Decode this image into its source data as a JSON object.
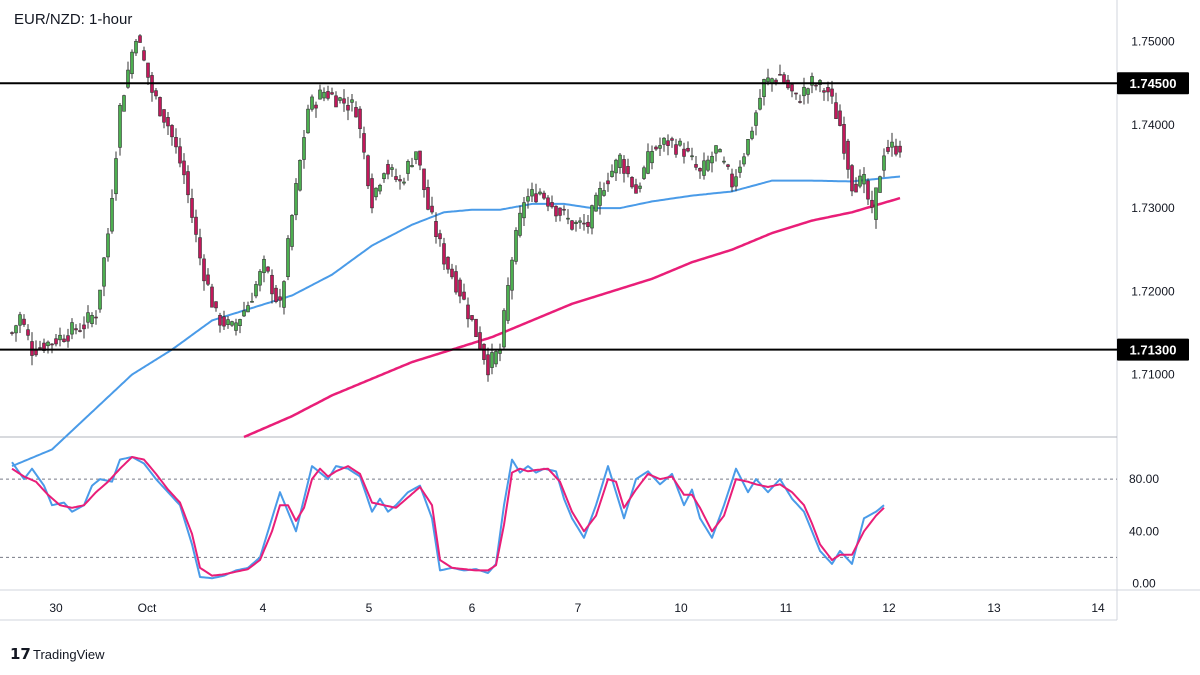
{
  "chart_data": [
    {
      "type": "candlestick",
      "title": "EUR/NZD: 1-hour",
      "ylim": [
        1.7025,
        1.755
      ],
      "y_ticks": [
        {
          "value": 1.75,
          "label": "1.75000"
        },
        {
          "value": 1.74,
          "label": "1.74000"
        },
        {
          "value": 1.73,
          "label": "1.73000"
        },
        {
          "value": 1.72,
          "label": "1.72000"
        },
        {
          "value": 1.71,
          "label": "1.71000"
        }
      ],
      "x_ticks": [
        "30",
        "Oct",
        "4",
        "5",
        "6",
        "7",
        "10",
        "11",
        "12",
        "13",
        "14"
      ],
      "colors": {
        "up": "#4caf50",
        "down": "#c2185b",
        "ma_fast": "#4a9be8",
        "ma_slow": "#e91e78",
        "level": "#000000"
      },
      "horizontal_levels": [
        {
          "value": 1.745,
          "label": "1.74500"
        },
        {
          "value": 1.713,
          "label": "1.71300"
        }
      ],
      "anchors": [
        [
          0,
          1.715
        ],
        [
          2,
          1.717
        ],
        [
          5,
          1.713
        ],
        [
          10,
          1.714
        ],
        [
          18,
          1.716
        ],
        [
          21,
          1.7175
        ],
        [
          24,
          1.727
        ],
        [
          27,
          1.742
        ],
        [
          31,
          1.751
        ],
        [
          35,
          1.744
        ],
        [
          39,
          1.74
        ],
        [
          43,
          1.734
        ],
        [
          47,
          1.724
        ],
        [
          51,
          1.717
        ],
        [
          55,
          1.7155
        ],
        [
          59,
          1.7185
        ],
        [
          63,
          1.723
        ],
        [
          67,
          1.718
        ],
        [
          70,
          1.729
        ],
        [
          74,
          1.742
        ],
        [
          78,
          1.744
        ],
        [
          82,
          1.743
        ],
        [
          86,
          1.742
        ],
        [
          90,
          1.731
        ],
        [
          93,
          1.735
        ],
        [
          97,
          1.733
        ],
        [
          101,
          1.737
        ],
        [
          104,
          1.73
        ],
        [
          108,
          1.724
        ],
        [
          112,
          1.72
        ],
        [
          116,
          1.715
        ],
        [
          119,
          1.711
        ],
        [
          122,
          1.713
        ],
        [
          125,
          1.724
        ],
        [
          128,
          1.731
        ],
        [
          132,
          1.732
        ],
        [
          136,
          1.73
        ],
        [
          140,
          1.728
        ],
        [
          144,
          1.728
        ],
        [
          148,
          1.733
        ],
        [
          152,
          1.736
        ],
        [
          156,
          1.732
        ],
        [
          160,
          1.737
        ],
        [
          164,
          1.738
        ],
        [
          168,
          1.737
        ],
        [
          172,
          1.734
        ],
        [
          176,
          1.737
        ],
        [
          180,
          1.733
        ],
        [
          184,
          1.738
        ],
        [
          188,
          1.745
        ],
        [
          192,
          1.746
        ],
        [
          196,
          1.743
        ],
        [
          200,
          1.745
        ],
        [
          204,
          1.744
        ],
        [
          207,
          1.74
        ],
        [
          210,
          1.733
        ],
        [
          213,
          1.733
        ],
        [
          215,
          1.729
        ],
        [
          218,
          1.737
        ],
        [
          222,
          1.7375
        ]
      ],
      "ma_fast_anchors": [
        [
          0,
          1.699
        ],
        [
          10,
          1.701
        ],
        [
          20,
          1.7055
        ],
        [
          30,
          1.71
        ],
        [
          40,
          1.713
        ],
        [
          50,
          1.7165
        ],
        [
          60,
          1.718
        ],
        [
          70,
          1.7195
        ],
        [
          80,
          1.722
        ],
        [
          90,
          1.7255
        ],
        [
          100,
          1.728
        ],
        [
          108,
          1.7295
        ],
        [
          115,
          1.7298
        ],
        [
          122,
          1.7298
        ],
        [
          130,
          1.7305
        ],
        [
          138,
          1.7305
        ],
        [
          145,
          1.73
        ],
        [
          152,
          1.73
        ],
        [
          160,
          1.7308
        ],
        [
          170,
          1.7315
        ],
        [
          180,
          1.732
        ],
        [
          190,
          1.7333
        ],
        [
          200,
          1.7333
        ],
        [
          210,
          1.7332
        ],
        [
          222,
          1.7338
        ]
      ],
      "ma_slow_anchors": [
        [
          58,
          1.7025
        ],
        [
          70,
          1.705
        ],
        [
          80,
          1.7075
        ],
        [
          90,
          1.7095
        ],
        [
          100,
          1.7115
        ],
        [
          110,
          1.713
        ],
        [
          120,
          1.7145
        ],
        [
          130,
          1.7165
        ],
        [
          140,
          1.7185
        ],
        [
          150,
          1.72
        ],
        [
          160,
          1.7215
        ],
        [
          170,
          1.7235
        ],
        [
          180,
          1.725
        ],
        [
          190,
          1.727
        ],
        [
          200,
          1.7285
        ],
        [
          210,
          1.7295
        ],
        [
          222,
          1.7312
        ]
      ]
    },
    {
      "type": "line",
      "indicator": "stochastic",
      "ylim": [
        -5,
        110
      ],
      "y_ticks": [
        {
          "value": 80,
          "label": "80.00"
        },
        {
          "value": 40,
          "label": "40.00"
        },
        {
          "value": 0,
          "label": "0.00"
        }
      ],
      "reference_levels": [
        80,
        20
      ],
      "series": [
        {
          "color": "#4a9be8",
          "anchors": [
            [
              0,
              93
            ],
            [
              3,
              80
            ],
            [
              5,
              88
            ],
            [
              8,
              75
            ],
            [
              10,
              60
            ],
            [
              13,
              62
            ],
            [
              15,
              55
            ],
            [
              18,
              60
            ],
            [
              20,
              75
            ],
            [
              22,
              80
            ],
            [
              25,
              78
            ],
            [
              27,
              95
            ],
            [
              30,
              97
            ],
            [
              33,
              92
            ],
            [
              36,
              80
            ],
            [
              39,
              70
            ],
            [
              42,
              60
            ],
            [
              45,
              30
            ],
            [
              47,
              5
            ],
            [
              50,
              4
            ],
            [
              53,
              6
            ],
            [
              56,
              10
            ],
            [
              59,
              12
            ],
            [
              62,
              20
            ],
            [
              65,
              50
            ],
            [
              67,
              70
            ],
            [
              69,
              55
            ],
            [
              71,
              40
            ],
            [
              73,
              65
            ],
            [
              75,
              90
            ],
            [
              77,
              85
            ],
            [
              79,
              80
            ],
            [
              81,
              90
            ],
            [
              84,
              88
            ],
            [
              87,
              82
            ],
            [
              90,
              55
            ],
            [
              92,
              65
            ],
            [
              94,
              55
            ],
            [
              96,
              60
            ],
            [
              99,
              70
            ],
            [
              102,
              75
            ],
            [
              105,
              50
            ],
            [
              107,
              10
            ],
            [
              110,
              12
            ],
            [
              113,
              10
            ],
            [
              116,
              11
            ],
            [
              119,
              8
            ],
            [
              121,
              15
            ],
            [
              123,
              60
            ],
            [
              125,
              95
            ],
            [
              127,
              85
            ],
            [
              129,
              90
            ],
            [
              131,
              85
            ],
            [
              133,
              88
            ],
            [
              136,
              86
            ],
            [
              138,
              65
            ],
            [
              140,
              50
            ],
            [
              143,
              35
            ],
            [
              146,
              60
            ],
            [
              149,
              90
            ],
            [
              151,
              70
            ],
            [
              153,
              50
            ],
            [
              156,
              80
            ],
            [
              159,
              86
            ],
            [
              162,
              76
            ],
            [
              165,
              84
            ],
            [
              168,
              60
            ],
            [
              170,
              72
            ],
            [
              172,
              50
            ],
            [
              175,
              35
            ],
            [
              178,
              60
            ],
            [
              181,
              88
            ],
            [
              184,
              70
            ],
            [
              186,
              80
            ],
            [
              189,
              70
            ],
            [
              192,
              80
            ],
            [
              195,
              65
            ],
            [
              198,
              55
            ],
            [
              200,
              40
            ],
            [
              202,
              25
            ],
            [
              205,
              15
            ],
            [
              207,
              25
            ],
            [
              210,
              15
            ],
            [
              213,
              50
            ],
            [
              216,
              55
            ],
            [
              218,
              60
            ]
          ]
        },
        {
          "color": "#e91e78",
          "anchors": [
            [
              0,
              88
            ],
            [
              3,
              82
            ],
            [
              6,
              78
            ],
            [
              9,
              68
            ],
            [
              12,
              60
            ],
            [
              15,
              58
            ],
            [
              18,
              60
            ],
            [
              21,
              70
            ],
            [
              24,
              78
            ],
            [
              27,
              88
            ],
            [
              30,
              97
            ],
            [
              33,
              95
            ],
            [
              36,
              84
            ],
            [
              39,
              72
            ],
            [
              42,
              62
            ],
            [
              45,
              38
            ],
            [
              47,
              12
            ],
            [
              50,
              6
            ],
            [
              53,
              7
            ],
            [
              56,
              9
            ],
            [
              59,
              11
            ],
            [
              62,
              18
            ],
            [
              65,
              40
            ],
            [
              67,
              60
            ],
            [
              69,
              60
            ],
            [
              71,
              48
            ],
            [
              73,
              58
            ],
            [
              75,
              80
            ],
            [
              77,
              88
            ],
            [
              79,
              82
            ],
            [
              81,
              86
            ],
            [
              84,
              90
            ],
            [
              87,
              84
            ],
            [
              90,
              62
            ],
            [
              93,
              60
            ],
            [
              96,
              58
            ],
            [
              99,
              66
            ],
            [
              102,
              74
            ],
            [
              105,
              60
            ],
            [
              107,
              18
            ],
            [
              110,
              12
            ],
            [
              113,
              11
            ],
            [
              116,
              10
            ],
            [
              119,
              10
            ],
            [
              121,
              14
            ],
            [
              123,
              45
            ],
            [
              125,
              85
            ],
            [
              127,
              88
            ],
            [
              129,
              86
            ],
            [
              131,
              87
            ],
            [
              134,
              88
            ],
            [
              137,
              78
            ],
            [
              140,
              55
            ],
            [
              143,
              40
            ],
            [
              146,
              52
            ],
            [
              149,
              80
            ],
            [
              151,
              78
            ],
            [
              153,
              58
            ],
            [
              156,
              72
            ],
            [
              159,
              84
            ],
            [
              162,
              80
            ],
            [
              165,
              82
            ],
            [
              168,
              68
            ],
            [
              170,
              68
            ],
            [
              172,
              58
            ],
            [
              175,
              40
            ],
            [
              178,
              52
            ],
            [
              181,
              80
            ],
            [
              184,
              78
            ],
            [
              186,
              76
            ],
            [
              189,
              74
            ],
            [
              192,
              76
            ],
            [
              195,
              70
            ],
            [
              198,
              60
            ],
            [
              200,
              46
            ],
            [
              202,
              30
            ],
            [
              205,
              18
            ],
            [
              207,
              22
            ],
            [
              210,
              22
            ],
            [
              213,
              40
            ],
            [
              216,
              52
            ],
            [
              218,
              58
            ]
          ]
        }
      ]
    }
  ],
  "brand": {
    "name": "TradingView",
    "logo_text": "17"
  }
}
